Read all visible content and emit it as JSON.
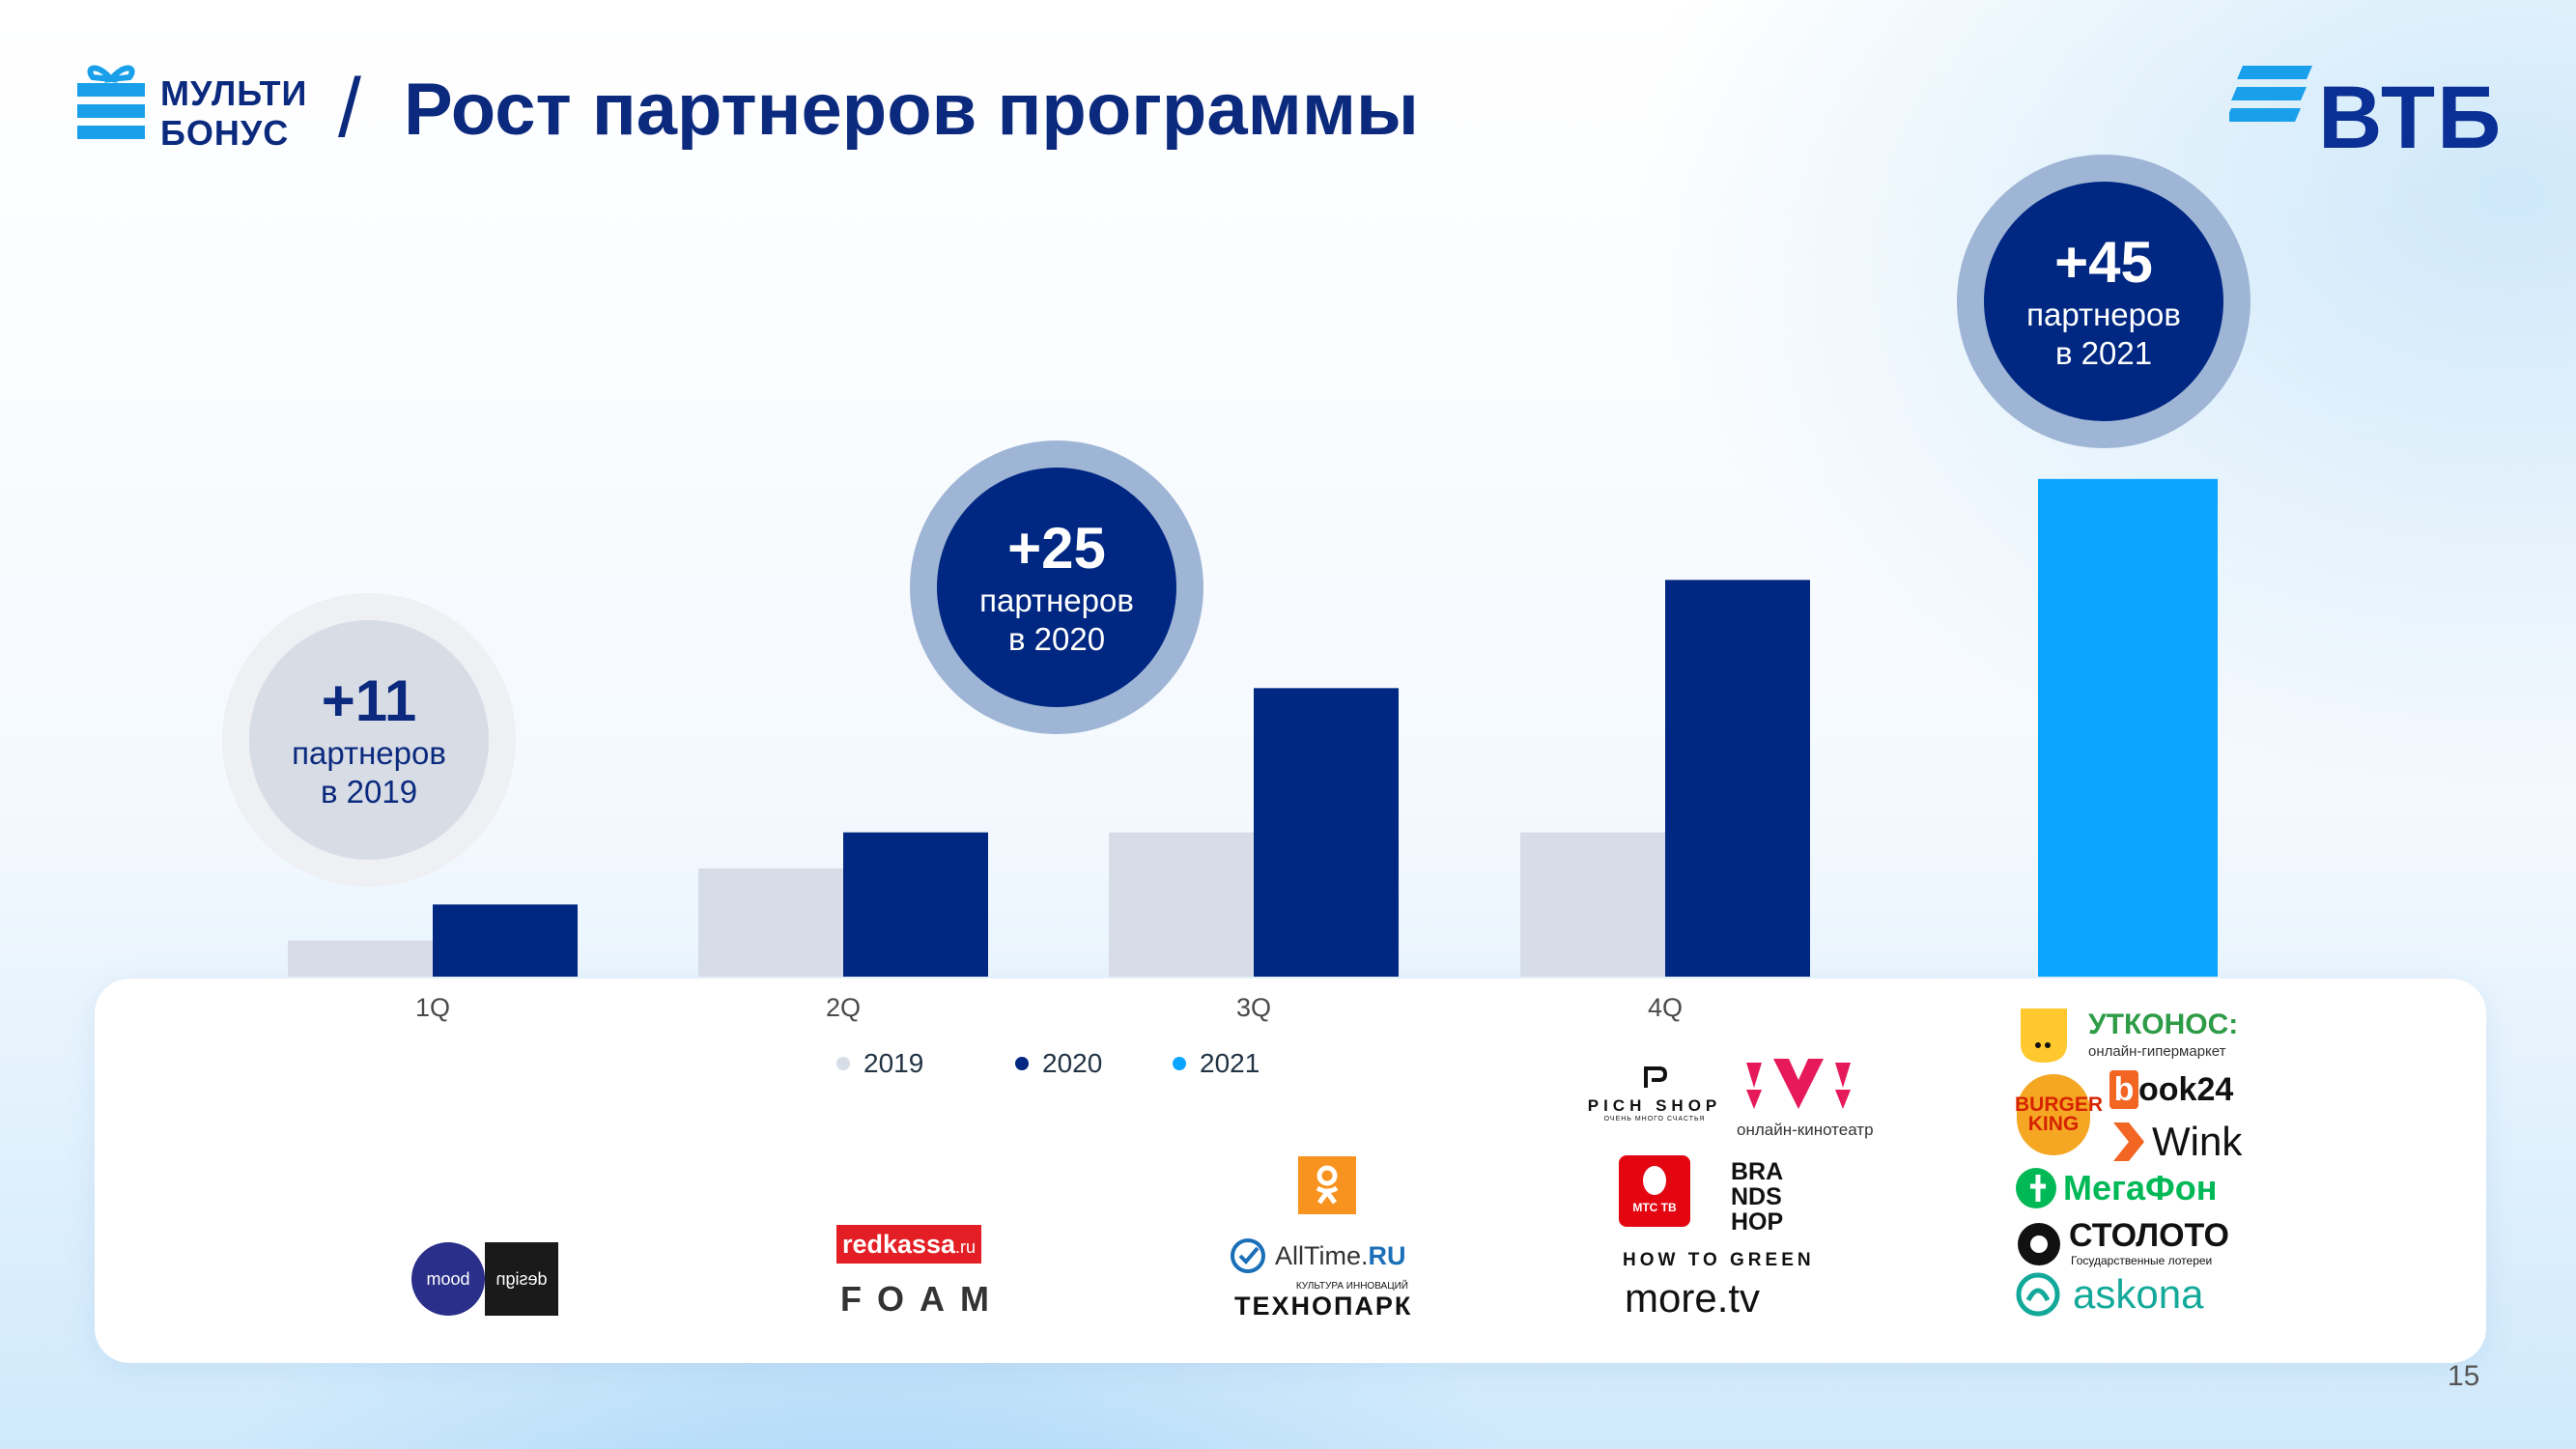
{
  "header": {
    "brand_line1": "МУЛЬТИ",
    "brand_line2": "БОНУС",
    "title": "Рост партнеров программы",
    "bank_logo": "ВТБ"
  },
  "colors": {
    "2019": "#d7dde6",
    "2020": "#002882",
    "2021": "#0aa5ff",
    "title": "#0b2a7e"
  },
  "chart_data": {
    "type": "bar",
    "categories": [
      "1Q",
      "2Q",
      "3Q",
      "4Q",
      ""
    ],
    "series": [
      {
        "name": "2019",
        "values": [
          5,
          15,
          20,
          20,
          null
        ]
      },
      {
        "name": "2020",
        "values": [
          10,
          20,
          40,
          55,
          null
        ]
      },
      {
        "name": "2021",
        "values": [
          null,
          null,
          null,
          null,
          69
        ]
      }
    ],
    "ylim": [
      0,
      75
    ],
    "grid": false,
    "legend_position": "bottom",
    "annotations": [
      {
        "value": "+11",
        "text_line1": "партнеров",
        "text_line2": "в 2019"
      },
      {
        "value": "+25",
        "text_line1": "партнеров",
        "text_line2": "в 2020"
      },
      {
        "value": "+45",
        "text_line1": "партнеров",
        "text_line2": "в 2021"
      }
    ]
  },
  "partners": {
    "q1": {
      "mood": "mood",
      "design": "design"
    },
    "q2": {
      "redkassa": "redkassa",
      "redkassa_suffix": ".ru",
      "foam": "FOAM"
    },
    "q3": {
      "ok_icon": "ok-icon",
      "alltime": "AllTime.",
      "alltime_suffix": "RU",
      "technopark_caption": "КУЛЬТУРА ИННОВАЦИЙ",
      "technopark": "ТЕХНОПАРК"
    },
    "q4": {
      "pichshop": "PICH SHOP",
      "pichshop_tagline": "ОЧЕНЬ МНОГО СЧАСТЬЯ",
      "ivi_tagline": "онлайн-кинотеатр",
      "mtstv": "МТС ТВ",
      "brandshop_l1": "BRA",
      "brandshop_l2": "NDS",
      "brandshop_l3": "HOP",
      "howtogreen": "HOW TO GREEN",
      "moretv": "more.tv"
    },
    "y2021": {
      "utkonos": "УТКОНОС:",
      "utkonos_sub": "онлайн-гипермаркет",
      "bk_l1": "BURGER",
      "bk_l2": "KING",
      "book24": "ook24",
      "wink": "Wink",
      "megafon": "МегаФон",
      "stoloto": "СТОЛОТО",
      "stoloto_sub": "Государственные лотереи",
      "askona": "askona"
    }
  },
  "page_number": "15"
}
